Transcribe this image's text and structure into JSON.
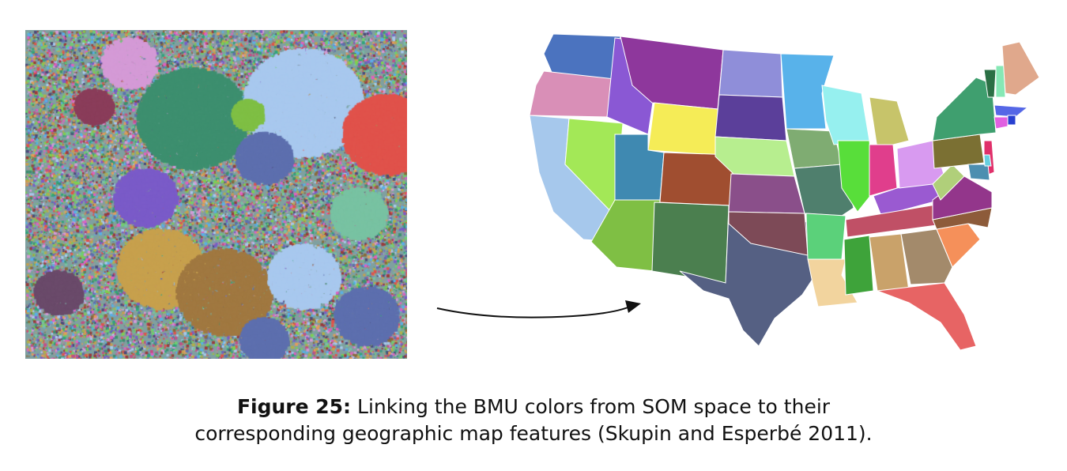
{
  "caption": {
    "label": "Figure 25:",
    "line1": " Linking the BMU colors from SOM space to their",
    "line2": "corresponding geographic map features (Skupin and Esperbé 2011)."
  },
  "som_colors": [
    "#3d8f6f",
    "#a8c8ee",
    "#e0524b",
    "#7a5bc8",
    "#8a6a3a",
    "#c7a04d",
    "#e05fc0",
    "#5d6fae",
    "#78c2a2",
    "#d49ad6",
    "#6fcf6f",
    "#9a3a3a",
    "#4a4a7a",
    "#57b0e8",
    "#b0b04a",
    "#e39d5a",
    "#2fa57a",
    "#c24f86",
    "#7fd04e",
    "#9a9a9a"
  ],
  "state_colors": {
    "wa": "#4b73bf",
    "or": "#d98fb7",
    "ca": "#a6c8ec",
    "nv": "#a3e857",
    "id": "#8a58d4",
    "mt": "#8e379c",
    "wy": "#f5ec57",
    "ut": "#3f89b1",
    "az": "#7fbf44",
    "co": "#a04e30",
    "nm": "#4b7f4f",
    "tx": "#556083",
    "nd": "#8f8ed9",
    "sd": "#5b3f9a",
    "ne": "#b7ee8f",
    "ks": "#8a4f8a",
    "ok": "#7d4a57",
    "mn": "#58b2ea",
    "ia": "#7fac72",
    "mo": "#4f7f6d",
    "ar": "#5bd17a",
    "la": "#f2d49e",
    "wi": "#96f0ef",
    "il": "#58de3a",
    "ms": "#3ea33a",
    "mi": "#c7c46a",
    "in": "#e03e8c",
    "ky": "#9a5ad1",
    "tn": "#c05066",
    "al": "#c9a26a",
    "oh": "#d89af0",
    "ga": "#a38a6b",
    "fl": "#e76464",
    "sc": "#f5905a",
    "nc": "#8d5b3a",
    "va": "#93368b",
    "wv": "#b0cf7a",
    "pa": "#7b7033",
    "ny": "#3f9f6f",
    "vt": "#2b7045",
    "nh": "#86e8b5",
    "me": "#e0a88c",
    "ma": "#5567e6",
    "ct": "#e060e0",
    "nj": "#e0306a",
    "md": "#4d8fb0",
    "de": "#67cfdf",
    "ri": "#2840d0"
  }
}
